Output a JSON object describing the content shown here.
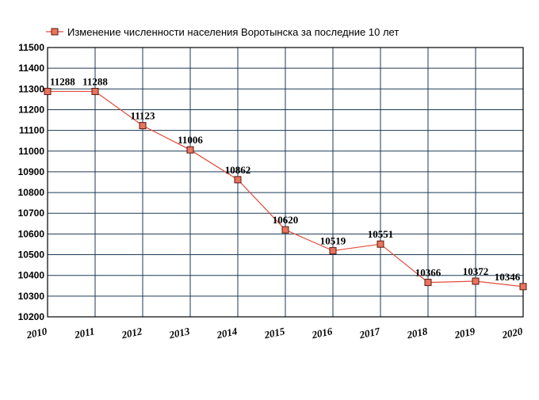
{
  "chart_data": {
    "type": "line",
    "title": "",
    "xlabel": "",
    "ylabel": "",
    "x": [
      "2010",
      "2011",
      "2012",
      "2013",
      "2014",
      "2015",
      "2016",
      "2017",
      "2018",
      "2019",
      "2020"
    ],
    "series": [
      {
        "name": "Изменение численности населения Воротынска за последние 10 лет",
        "values": [
          11288,
          11288,
          11123,
          11006,
          10862,
          10620,
          10519,
          10551,
          10366,
          10372,
          10346
        ]
      }
    ],
    "data_labels": [
      "11288",
      "11288",
      "11123",
      "11006",
      "10862",
      "10620",
      "10519",
      "10551",
      "10366",
      "10372",
      "10346"
    ],
    "y_ticks": [
      "10200",
      "10300",
      "10400",
      "10500",
      "10600",
      "10700",
      "10800",
      "10900",
      "11000",
      "11100",
      "11200",
      "11300",
      "11400",
      "11500"
    ],
    "ylim": [
      10200,
      11500
    ],
    "ystep": 100,
    "grid": true,
    "legend_position": "top-left",
    "colors": {
      "line": "#e04b3c",
      "marker_fill": "#e8745e",
      "marker_stroke": "#5a1a10",
      "grid": "#1c3a55",
      "frame": "#000000"
    }
  }
}
